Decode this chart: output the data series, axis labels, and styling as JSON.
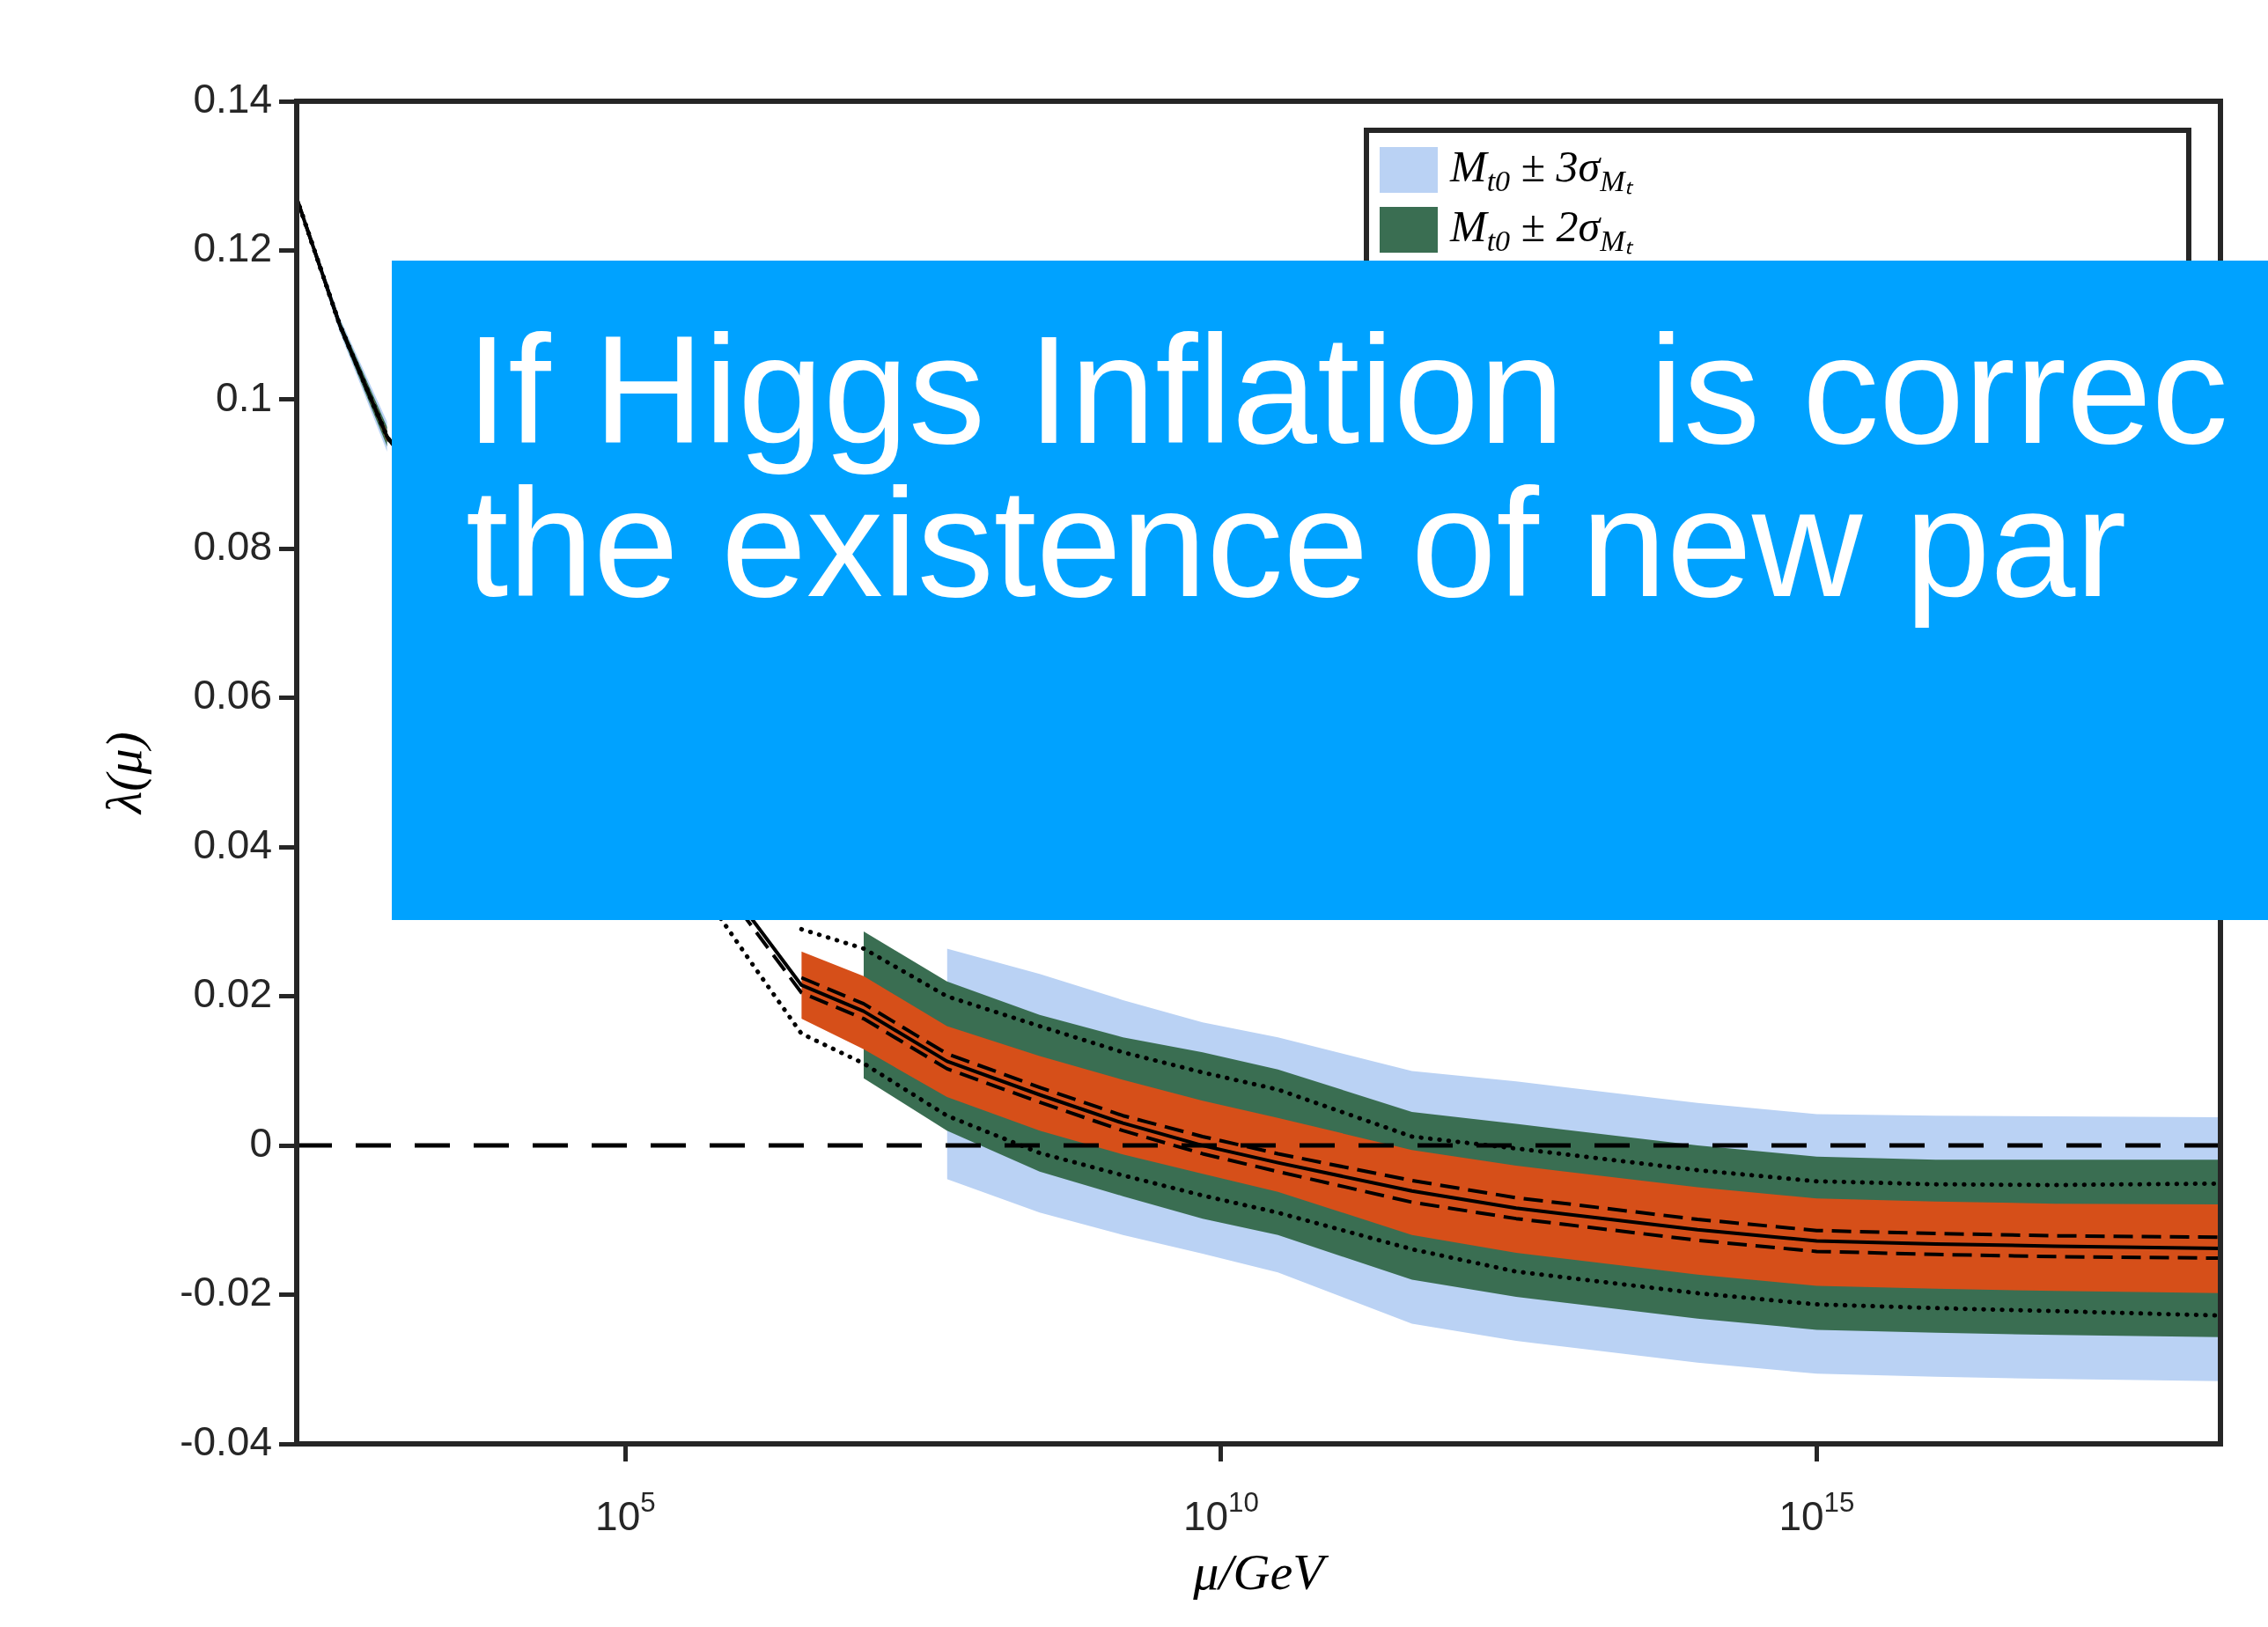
{
  "chart_data": {
    "type": "line",
    "xlabel": "μ/GeV",
    "ylabel": "λ(μ)",
    "log": "x",
    "x": [
      174,
      400,
      1000,
      1200000,
      3000000,
      10000000.0,
      50000000.0,
      300000000.0,
      1500000000.0,
      7000000000.0,
      30000000000.0,
      400000000000.0,
      3000000000000.0,
      100000000000000.0,
      1000000000000000.0,
      1e+16,
      1e+17,
      2.45e+18
    ],
    "xlim": [
      174,
      2.45e+18
    ],
    "xticks": [
      {
        "value": 100000,
        "label": "10$^{5}$"
      },
      {
        "value": 10000000000.0,
        "label": "10$^{10}$"
      },
      {
        "value": 1000000000000000.0,
        "label": "10$^{15}$"
      }
    ],
    "ylim": [
      -0.04,
      0.14
    ],
    "yticks": [
      -0.04,
      -0.02,
      0,
      0.02,
      0.04,
      0.06,
      0.08,
      0.1,
      0.12,
      0.14
    ],
    "legend": "top right",
    "series": [
      {
        "name": "M$_{t0}$ ± 3σ$_{Mₜ}$",
        "color": "#bad2f4",
        "values": [
          null,
          null,
          null,
          null,
          null,
          null,
          null,
          null,
          null,
          null,
          null,
          null,
          null,
          null,
          null,
          null,
          null,
          null
        ],
        "lower": [
          0.1265,
          0.109,
          0.093,
          null,
          null,
          null,
          -0.0045,
          -0.009,
          -0.012,
          -0.0145,
          -0.017,
          -0.0239,
          -0.0262,
          -0.0291,
          -0.0306,
          -0.031,
          -0.0313,
          -0.0316
        ],
        "upper": [
          0.1275,
          0.111,
          0.097,
          null,
          null,
          null,
          0.0264,
          0.023,
          0.0195,
          0.0165,
          0.0145,
          0.01,
          0.0086,
          0.0057,
          0.0042,
          0.004,
          0.0039,
          0.0038
        ]
      },
      {
        "name": "M$_{t0}$ ± 2σ$_{Mₜ}$",
        "color": "#3a6e52",
        "values": [
          null,
          null,
          null,
          null,
          null,
          null,
          null,
          null,
          null,
          null,
          null,
          null,
          null,
          null,
          null,
          null,
          null,
          null
        ],
        "lower": [
          0.1266,
          0.1093,
          0.0937,
          null,
          null,
          0.009,
          0.002,
          -0.0035,
          -0.0068,
          -0.0098,
          -0.012,
          -0.018,
          -0.0203,
          -0.0232,
          -0.0247,
          -0.0251,
          -0.0254,
          -0.0257
        ],
        "upper": [
          0.1274,
          0.1107,
          0.0963,
          null,
          null,
          0.0287,
          0.022,
          0.0175,
          0.0145,
          0.0125,
          0.0102,
          0.0045,
          0.0029,
          0.0,
          -0.0015,
          -0.0019,
          -0.0019,
          -0.0019
        ]
      },
      {
        "color": "#d64f19",
        "values": [
          null,
          null,
          null,
          null,
          null,
          null,
          null,
          null,
          null,
          null,
          null,
          null,
          null,
          null,
          null,
          null,
          null,
          null
        ],
        "lower": [
          0.1268,
          0.1097,
          0.0943,
          null,
          0.017,
          0.0129,
          0.0065,
          0.002,
          -0.0012,
          -0.0038,
          -0.0062,
          -0.012,
          -0.0144,
          -0.0173,
          -0.0188,
          -0.0192,
          -0.0195,
          -0.0198
        ],
        "upper": [
          0.1272,
          0.1103,
          0.0957,
          null,
          0.026,
          0.0227,
          0.016,
          0.012,
          0.0088,
          0.006,
          0.0037,
          -0.0006,
          -0.0027,
          -0.0056,
          -0.0071,
          -0.0075,
          -0.0078,
          -0.0079
        ]
      },
      {
        "color": "#000000",
        "line_style": "dotted",
        "values": [
          0.127,
          0.11,
          0.095,
          null,
          0.029,
          0.0264,
          0.02,
          0.016,
          0.0125,
          0.0098,
          0.0075,
          0.0012,
          -0.0004,
          -0.0033,
          -0.0048,
          -0.0052,
          -0.0053,
          -0.0051
        ]
      },
      {
        "color": "#000000",
        "line_style": "dotted",
        "values": [
          0.127,
          0.11,
          0.095,
          0.024,
          0.015,
          0.011,
          0.004,
          -0.001,
          -0.004,
          -0.0067,
          -0.009,
          -0.0139,
          -0.0169,
          -0.0198,
          -0.0213,
          -0.0218,
          -0.0222,
          -0.0228
        ]
      },
      {
        "color": "#000000",
        "line_style": "dashed",
        "values": [
          null,
          null,
          null,
          null,
          0.0225,
          0.019,
          0.0123,
          0.0078,
          0.004,
          0.0012,
          -0.0011,
          -0.0047,
          -0.007,
          -0.0099,
          -0.0114,
          -0.0118,
          -0.0121,
          -0.0123
        ]
      },
      {
        "color": "#000000",
        "line_style": "dashed",
        "values": [
          0.127,
          0.11,
          0.095,
          0.029,
          0.0205,
          0.017,
          0.0103,
          0.0058,
          0.002,
          -0.0011,
          -0.0035,
          -0.0076,
          -0.0098,
          -0.0127,
          -0.0142,
          -0.0146,
          -0.0149,
          -0.0151
        ]
      },
      {
        "color": "#000000",
        "line_style": "solid",
        "values": [
          0.127,
          0.11,
          0.095,
          0.03,
          0.0215,
          0.018,
          0.0113,
          0.0068,
          0.003,
          0,
          -0.0023,
          -0.0061,
          -0.0084,
          -0.0113,
          -0.0128,
          -0.0132,
          -0.0135,
          -0.0138
        ]
      }
    ],
    "ref_lines": [
      {
        "axis": "y",
        "value": 0,
        "line_style": "dashed",
        "color": "#000000"
      }
    ],
    "annotations": [
      "If Higgs Inflation  is correc",
      "the existence of new par"
    ]
  }
}
